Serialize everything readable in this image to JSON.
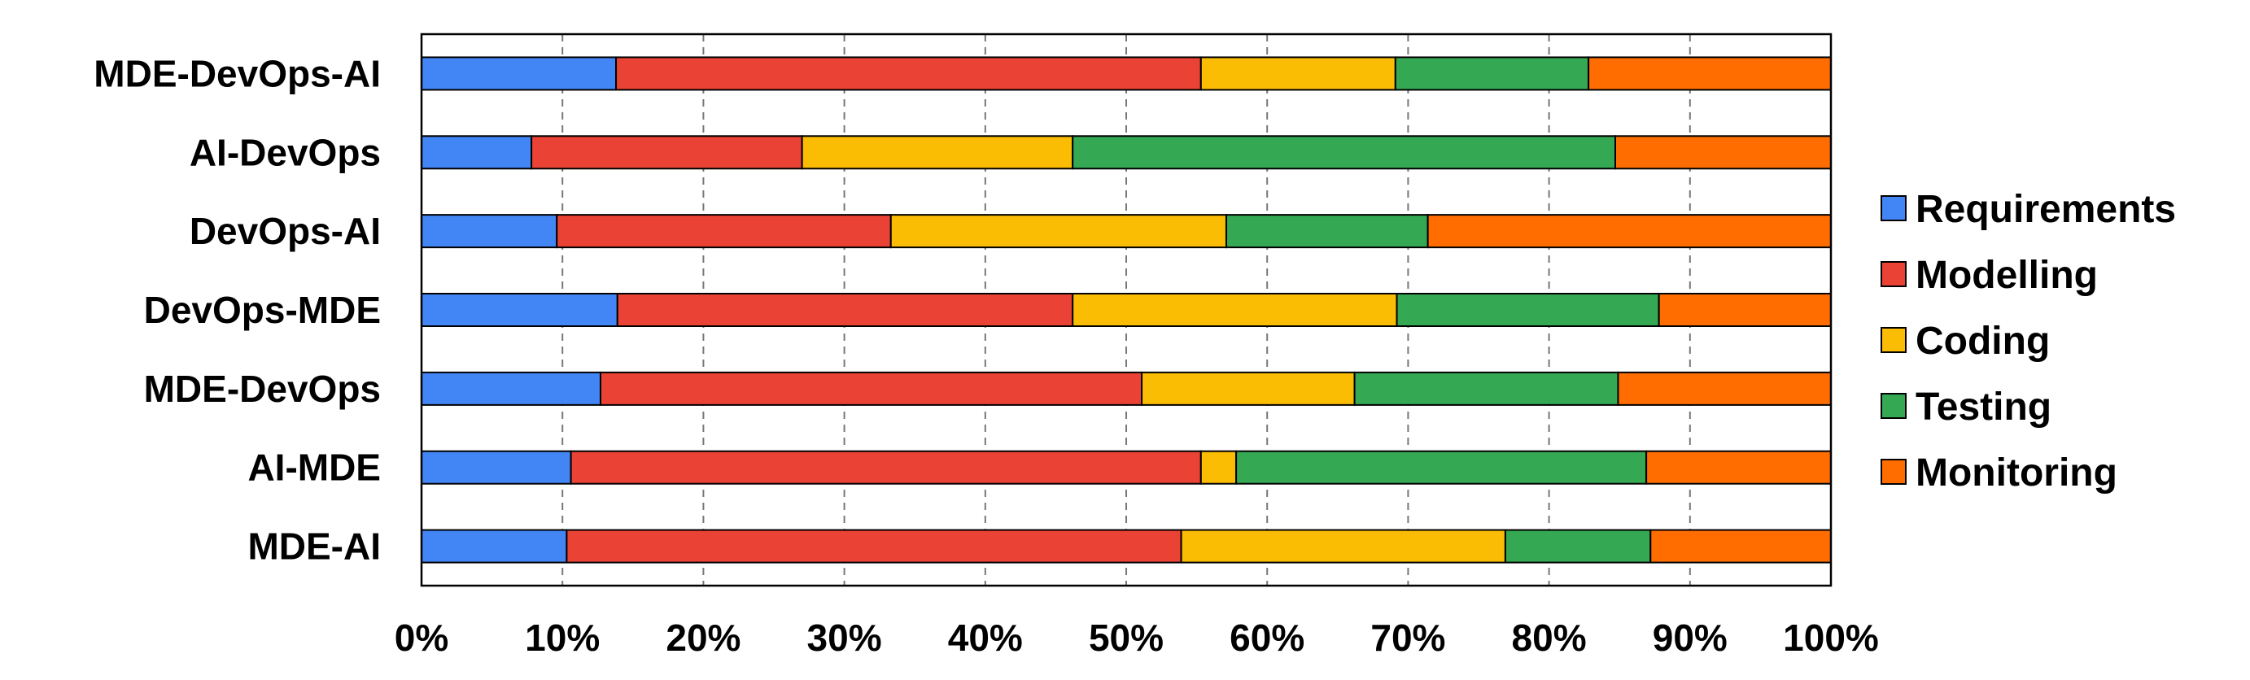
{
  "chart_data": {
    "type": "bar",
    "orientation": "horizontal",
    "stacked": true,
    "normalized": true,
    "title": "",
    "xlabel": "",
    "ylabel": "",
    "xlim": [
      0,
      100
    ],
    "x_ticks": [
      "0%",
      "10%",
      "20%",
      "30%",
      "40%",
      "50%",
      "60%",
      "70%",
      "80%",
      "90%",
      "100%"
    ],
    "grid": "vertical dashed",
    "legend_position": "right",
    "categories": [
      "MDE-DevOps-AI",
      "AI-DevOps",
      "DevOps-AI",
      "DevOps-MDE",
      "MDE-DevOps",
      "AI-MDE",
      "MDE-AI"
    ],
    "series": [
      {
        "name": "Requirements",
        "color": "#4285f4",
        "values": [
          13.8,
          7.8,
          9.6,
          13.9,
          12.7,
          10.6,
          10.3
        ]
      },
      {
        "name": "Modelling",
        "color": "#ea4335",
        "values": [
          41.5,
          19.2,
          23.7,
          32.3,
          38.4,
          44.7,
          43.6
        ]
      },
      {
        "name": "Coding",
        "color": "#fbbc04",
        "values": [
          13.8,
          19.2,
          23.8,
          23.0,
          15.1,
          2.5,
          23.0
        ]
      },
      {
        "name": "Testing",
        "color": "#34a853",
        "values": [
          13.7,
          38.5,
          14.3,
          18.6,
          18.7,
          29.1,
          10.3
        ]
      },
      {
        "name": "Monitoring",
        "color": "#ff6d01",
        "values": [
          17.2,
          15.3,
          28.6,
          12.2,
          15.1,
          13.1,
          12.8
        ]
      }
    ]
  }
}
